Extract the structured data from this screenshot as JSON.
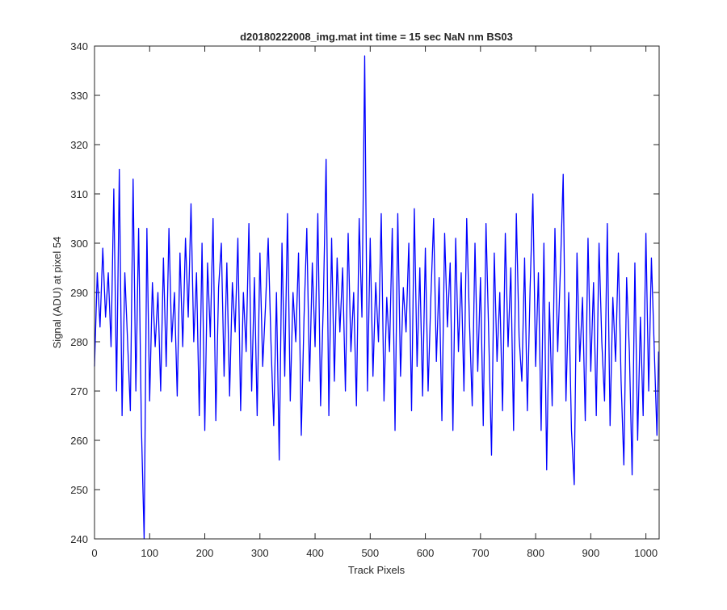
{
  "chart_data": {
    "type": "line",
    "title": "d20180222008_img.mat int time = 15 sec  NaN nm BS03",
    "x_label": "Track Pixels",
    "y_label": "Signal (ADU) at pixel 54",
    "xlim": [
      0,
      1024
    ],
    "ylim": [
      240,
      340
    ],
    "xticks": [
      0,
      100,
      200,
      300,
      400,
      500,
      600,
      700,
      800,
      900,
      1000
    ],
    "yticks": [
      240,
      250,
      260,
      270,
      280,
      290,
      300,
      310,
      320,
      330,
      340
    ],
    "grid": false,
    "series": [
      {
        "color": "#0000ff",
        "x": [
          0,
          5,
          10,
          15,
          20,
          25,
          30,
          35,
          40,
          45,
          50,
          55,
          60,
          65,
          70,
          75,
          80,
          85,
          90,
          95,
          100,
          105,
          110,
          115,
          120,
          125,
          130,
          135,
          140,
          145,
          150,
          155,
          160,
          165,
          170,
          175,
          180,
          185,
          190,
          195,
          200,
          205,
          210,
          215,
          220,
          225,
          230,
          235,
          240,
          245,
          250,
          255,
          260,
          265,
          270,
          275,
          280,
          285,
          290,
          295,
          300,
          305,
          310,
          315,
          320,
          325,
          330,
          335,
          340,
          345,
          350,
          355,
          360,
          365,
          370,
          375,
          380,
          385,
          390,
          395,
          400,
          405,
          410,
          415,
          420,
          425,
          430,
          435,
          440,
          445,
          450,
          455,
          460,
          465,
          470,
          475,
          480,
          485,
          490,
          495,
          500,
          505,
          510,
          515,
          520,
          525,
          530,
          535,
          540,
          545,
          550,
          555,
          560,
          565,
          570,
          575,
          580,
          585,
          590,
          595,
          600,
          605,
          610,
          615,
          620,
          625,
          630,
          635,
          640,
          645,
          650,
          655,
          660,
          665,
          670,
          675,
          680,
          685,
          690,
          695,
          700,
          705,
          710,
          715,
          720,
          725,
          730,
          735,
          740,
          745,
          750,
          755,
          760,
          765,
          770,
          775,
          780,
          785,
          790,
          795,
          800,
          805,
          810,
          815,
          820,
          825,
          830,
          835,
          840,
          845,
          850,
          855,
          860,
          865,
          870,
          875,
          880,
          885,
          890,
          895,
          900,
          905,
          910,
          915,
          920,
          925,
          930,
          935,
          940,
          945,
          950,
          955,
          960,
          965,
          970,
          975,
          980,
          985,
          990,
          995,
          1000,
          1005,
          1010,
          1015,
          1020,
          1023
        ],
        "values": [
          275,
          294,
          283,
          299,
          285,
          294,
          279,
          311,
          270,
          315,
          265,
          294,
          280,
          266,
          313,
          270,
          303,
          263,
          240,
          303,
          268,
          292,
          279,
          290,
          270,
          297,
          275,
          303,
          280,
          290,
          269,
          298,
          279,
          301,
          285,
          308,
          280,
          294,
          265,
          300,
          262,
          296,
          281,
          305,
          264,
          291,
          300,
          273,
          296,
          269,
          292,
          282,
          301,
          266,
          290,
          278,
          304,
          270,
          293,
          265,
          298,
          275,
          287,
          301,
          280,
          263,
          290,
          256,
          300,
          273,
          306,
          268,
          290,
          280,
          298,
          261,
          285,
          303,
          272,
          296,
          279,
          306,
          267,
          288,
          317,
          265,
          301,
          272,
          297,
          282,
          295,
          270,
          302,
          278,
          290,
          267,
          305,
          285,
          338,
          270,
          301,
          273,
          292,
          280,
          306,
          268,
          289,
          278,
          303,
          262,
          306,
          273,
          291,
          282,
          300,
          266,
          307,
          275,
          295,
          269,
          299,
          270,
          289,
          305,
          276,
          293,
          264,
          302,
          283,
          296,
          262,
          301,
          278,
          294,
          270,
          305,
          284,
          267,
          300,
          274,
          293,
          263,
          304,
          281,
          257,
          298,
          276,
          290,
          266,
          302,
          279,
          295,
          262,
          306,
          281,
          272,
          297,
          266,
          291,
          310,
          275,
          294,
          262,
          300,
          254,
          288,
          267,
          303,
          278,
          295,
          314,
          268,
          290,
          262,
          251,
          298,
          276,
          289,
          264,
          301,
          274,
          292,
          265,
          300,
          280,
          268,
          304,
          263,
          289,
          276,
          298,
          272,
          255,
          293,
          278,
          253,
          296,
          260,
          285,
          265,
          302,
          270,
          297,
          279,
          261,
          278
        ]
      }
    ]
  }
}
